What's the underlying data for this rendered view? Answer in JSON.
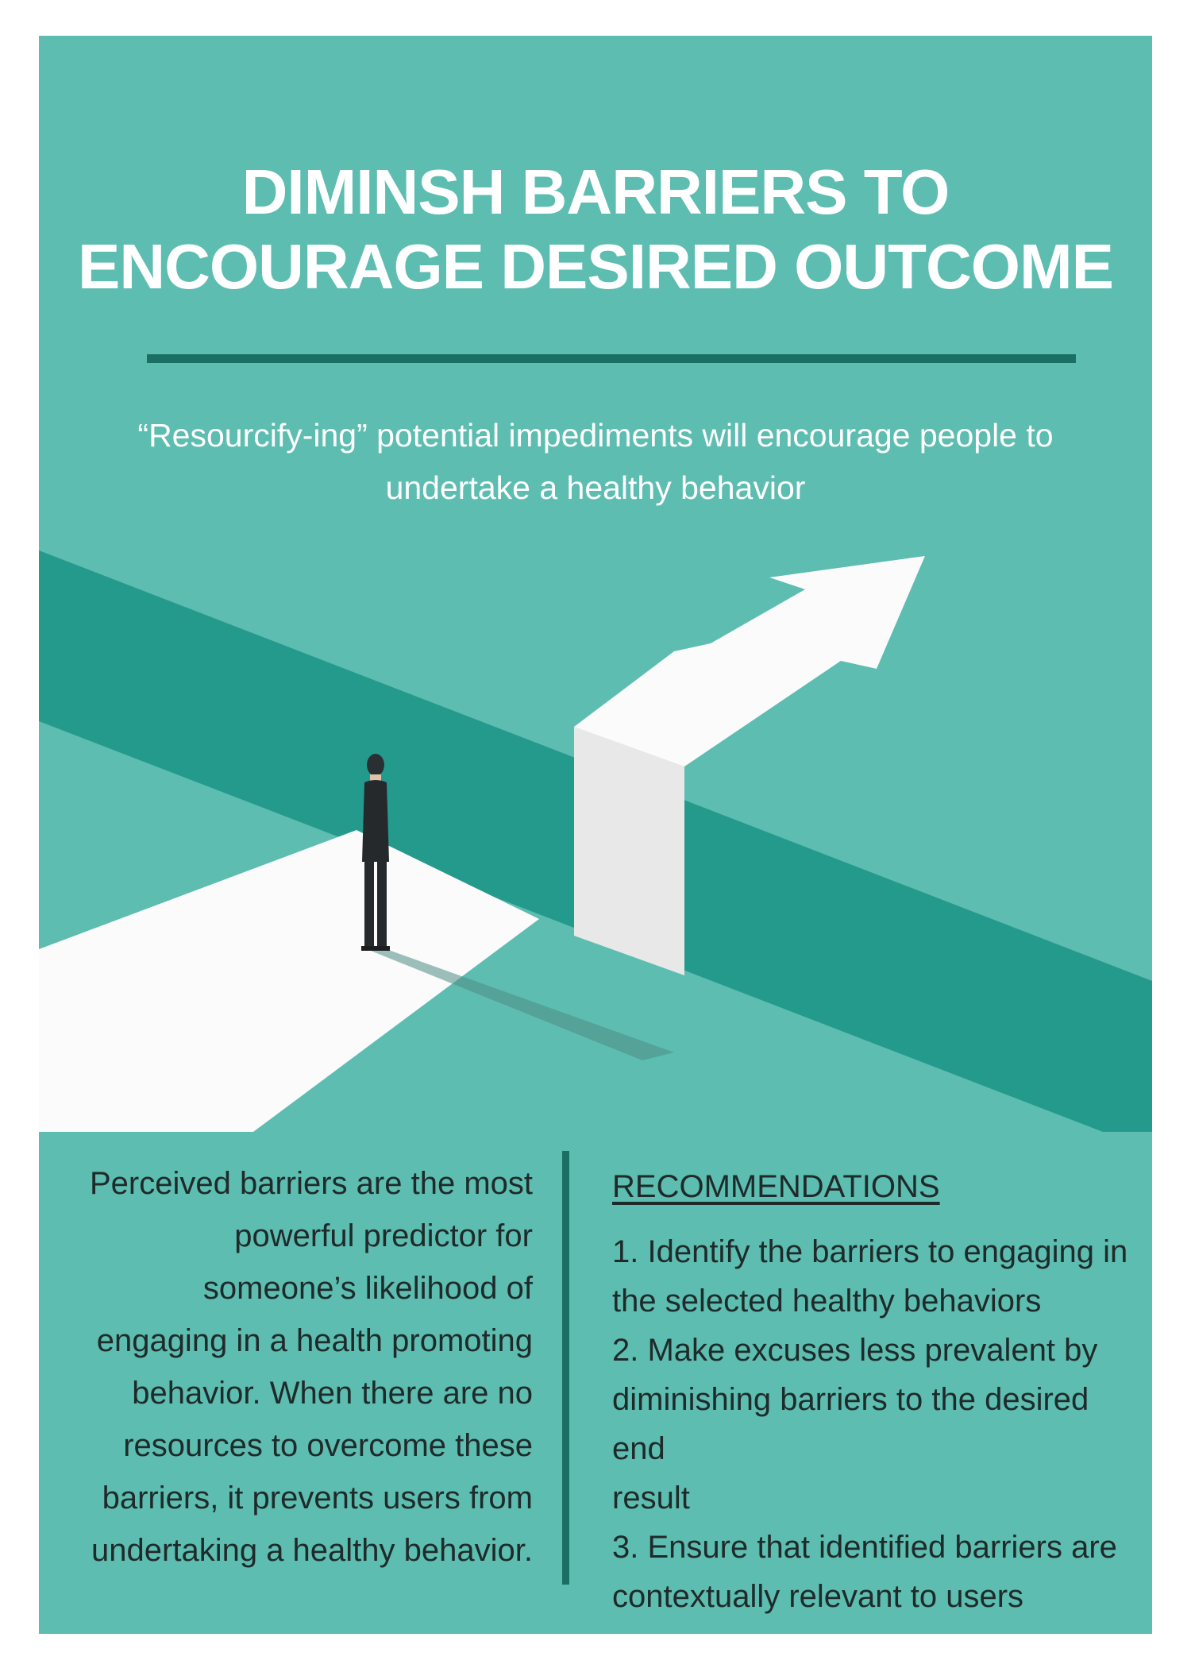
{
  "title": {
    "line1": "DIMINSH BARRIERS TO",
    "line2": "ENCOURAGE DESIRED OUTCOME"
  },
  "subtitle": {
    "line1": "“Resourcify-ing” potential impediments will encourage people to",
    "line2": "undertake a healthy behavior"
  },
  "illustration": {
    "icon": "person-at-gap-with-arrow-icon"
  },
  "body": {
    "lines": [
      "Perceived barriers are the most",
      "powerful predictor for",
      "someone’s likelihood of",
      "engaging in a health promoting",
      "behavior. When there are no",
      "resources to overcome these",
      "barriers, it prevents users from",
      "undertaking a healthy behavior."
    ]
  },
  "recommendations": {
    "heading": "RECOMMENDATIONS",
    "items": [
      {
        "line1": "1. Identify the barriers to engaging in",
        "line2": "the selected healthy behaviors"
      },
      {
        "line1": "2. Make excuses less prevalent by",
        "line2": "diminishing barriers to the desired end",
        "line3": "result"
      },
      {
        "line1": "3. Ensure that identified barriers are",
        "line2": "contextually relevant to users"
      }
    ]
  },
  "colors": {
    "background": "#5dbdb0",
    "dark_band": "#249a8d",
    "rule": "#1a6f65",
    "path": "#fbfbfb",
    "text_dark": "#1f2a2a"
  }
}
